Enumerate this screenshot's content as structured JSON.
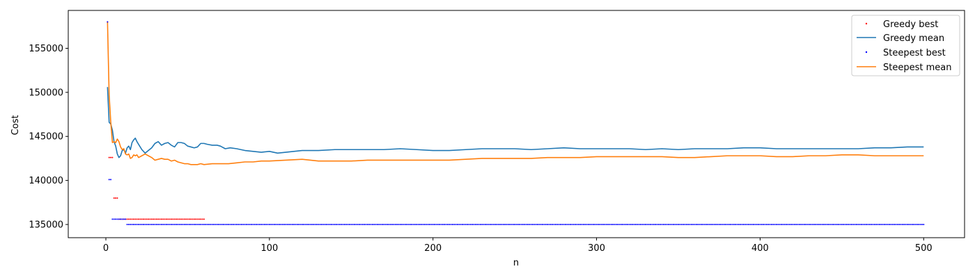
{
  "chart_data": {
    "type": "line",
    "title": "",
    "xlabel": "n",
    "ylabel": "Cost",
    "xlim": [
      -23,
      525
    ],
    "ylim": [
      133500,
      159300
    ],
    "x_ticks": [
      0,
      100,
      200,
      300,
      400,
      500
    ],
    "y_ticks": [
      135000,
      140000,
      145000,
      150000,
      155000
    ],
    "x_tick_labels": [
      "0",
      "100",
      "200",
      "300",
      "400",
      "500"
    ],
    "y_tick_labels": [
      "135000",
      "140000",
      "145000",
      "150000",
      "155000"
    ],
    "grid": false,
    "legend_position": "top-right",
    "series": [
      {
        "name": "Greedy best",
        "kind": "markers",
        "color": "#ff0000",
        "segments": [
          {
            "x_start": 1,
            "x_end": 1,
            "y": 158000
          },
          {
            "x_start": 2,
            "x_end": 4,
            "y": 142600
          },
          {
            "x_start": 5,
            "x_end": 7,
            "y": 138000
          },
          {
            "x_start": 8,
            "x_end": 60,
            "y": 135600
          }
        ]
      },
      {
        "name": "Greedy mean",
        "kind": "line",
        "color": "#1f77b4",
        "points": [
          [
            1,
            150600
          ],
          [
            2,
            146600
          ],
          [
            3,
            146400
          ],
          [
            4,
            145700
          ],
          [
            5,
            144400
          ],
          [
            6,
            143900
          ],
          [
            7,
            143000
          ],
          [
            8,
            142600
          ],
          [
            9,
            142800
          ],
          [
            10,
            143400
          ],
          [
            11,
            143500
          ],
          [
            12,
            143100
          ],
          [
            13,
            143700
          ],
          [
            14,
            143900
          ],
          [
            15,
            143500
          ],
          [
            16,
            144300
          ],
          [
            17,
            144600
          ],
          [
            18,
            144800
          ],
          [
            19,
            144400
          ],
          [
            20,
            144100
          ],
          [
            22,
            143500
          ],
          [
            24,
            143100
          ],
          [
            26,
            143400
          ],
          [
            28,
            143700
          ],
          [
            30,
            144200
          ],
          [
            32,
            144400
          ],
          [
            34,
            144000
          ],
          [
            36,
            144200
          ],
          [
            38,
            144300
          ],
          [
            40,
            144000
          ],
          [
            42,
            143800
          ],
          [
            44,
            144300
          ],
          [
            46,
            144300
          ],
          [
            48,
            144200
          ],
          [
            50,
            143900
          ],
          [
            52,
            143800
          ],
          [
            54,
            143700
          ],
          [
            56,
            143800
          ],
          [
            58,
            144200
          ],
          [
            60,
            144200
          ],
          [
            62,
            144100
          ],
          [
            65,
            144000
          ],
          [
            68,
            144000
          ],
          [
            70,
            143900
          ],
          [
            73,
            143600
          ],
          [
            76,
            143700
          ],
          [
            80,
            143600
          ],
          [
            85,
            143400
          ],
          [
            90,
            143300
          ],
          [
            95,
            143200
          ],
          [
            100,
            143300
          ],
          [
            105,
            143100
          ],
          [
            110,
            143200
          ],
          [
            115,
            143300
          ],
          [
            120,
            143400
          ],
          [
            130,
            143400
          ],
          [
            140,
            143500
          ],
          [
            150,
            143500
          ],
          [
            160,
            143500
          ],
          [
            170,
            143500
          ],
          [
            180,
            143600
          ],
          [
            190,
            143500
          ],
          [
            200,
            143400
          ],
          [
            210,
            143400
          ],
          [
            220,
            143500
          ],
          [
            230,
            143600
          ],
          [
            240,
            143600
          ],
          [
            250,
            143600
          ],
          [
            260,
            143500
          ],
          [
            270,
            143600
          ],
          [
            280,
            143700
          ],
          [
            290,
            143600
          ],
          [
            300,
            143600
          ],
          [
            310,
            143600
          ],
          [
            320,
            143600
          ],
          [
            330,
            143500
          ],
          [
            340,
            143600
          ],
          [
            350,
            143500
          ],
          [
            360,
            143600
          ],
          [
            370,
            143600
          ],
          [
            380,
            143600
          ],
          [
            390,
            143700
          ],
          [
            400,
            143700
          ],
          [
            410,
            143600
          ],
          [
            420,
            143600
          ],
          [
            430,
            143600
          ],
          [
            440,
            143600
          ],
          [
            450,
            143600
          ],
          [
            460,
            143600
          ],
          [
            470,
            143700
          ],
          [
            480,
            143700
          ],
          [
            490,
            143800
          ],
          [
            500,
            143800
          ]
        ]
      },
      {
        "name": "Steepest best",
        "kind": "markers",
        "color": "#0000ff",
        "segments": [
          {
            "x_start": 1,
            "x_end": 1,
            "y": 158000
          },
          {
            "x_start": 2,
            "x_end": 3,
            "y": 140100
          },
          {
            "x_start": 4,
            "x_end": 12,
            "y": 135600
          },
          {
            "x_start": 13,
            "x_end": 500,
            "y": 135000
          }
        ]
      },
      {
        "name": "Steepest mean",
        "kind": "line",
        "color": "#ff7f0e",
        "points": [
          [
            1,
            158000
          ],
          [
            2,
            149700
          ],
          [
            3,
            146600
          ],
          [
            4,
            144300
          ],
          [
            5,
            144400
          ],
          [
            6,
            144300
          ],
          [
            7,
            144700
          ],
          [
            8,
            144400
          ],
          [
            9,
            143800
          ],
          [
            10,
            143500
          ],
          [
            11,
            143600
          ],
          [
            12,
            143000
          ],
          [
            13,
            142900
          ],
          [
            14,
            143000
          ],
          [
            15,
            142500
          ],
          [
            16,
            142600
          ],
          [
            17,
            142900
          ],
          [
            18,
            142800
          ],
          [
            19,
            142900
          ],
          [
            20,
            142600
          ],
          [
            22,
            142800
          ],
          [
            24,
            143000
          ],
          [
            26,
            142800
          ],
          [
            28,
            142600
          ],
          [
            30,
            142300
          ],
          [
            32,
            142400
          ],
          [
            34,
            142500
          ],
          [
            36,
            142400
          ],
          [
            38,
            142400
          ],
          [
            40,
            142200
          ],
          [
            42,
            142300
          ],
          [
            44,
            142100
          ],
          [
            46,
            142000
          ],
          [
            48,
            141900
          ],
          [
            50,
            141900
          ],
          [
            52,
            141800
          ],
          [
            54,
            141800
          ],
          [
            56,
            141800
          ],
          [
            58,
            141900
          ],
          [
            60,
            141800
          ],
          [
            65,
            141900
          ],
          [
            70,
            141900
          ],
          [
            75,
            141900
          ],
          [
            80,
            142000
          ],
          [
            85,
            142100
          ],
          [
            90,
            142100
          ],
          [
            95,
            142200
          ],
          [
            100,
            142200
          ],
          [
            110,
            142300
          ],
          [
            120,
            142400
          ],
          [
            130,
            142200
          ],
          [
            140,
            142200
          ],
          [
            150,
            142200
          ],
          [
            160,
            142300
          ],
          [
            170,
            142300
          ],
          [
            180,
            142300
          ],
          [
            190,
            142300
          ],
          [
            200,
            142300
          ],
          [
            210,
            142300
          ],
          [
            220,
            142400
          ],
          [
            230,
            142500
          ],
          [
            240,
            142500
          ],
          [
            250,
            142500
          ],
          [
            260,
            142500
          ],
          [
            270,
            142600
          ],
          [
            280,
            142600
          ],
          [
            290,
            142600
          ],
          [
            300,
            142700
          ],
          [
            310,
            142700
          ],
          [
            320,
            142700
          ],
          [
            330,
            142700
          ],
          [
            340,
            142700
          ],
          [
            350,
            142600
          ],
          [
            360,
            142600
          ],
          [
            370,
            142700
          ],
          [
            380,
            142800
          ],
          [
            390,
            142800
          ],
          [
            400,
            142800
          ],
          [
            410,
            142700
          ],
          [
            420,
            142700
          ],
          [
            430,
            142800
          ],
          [
            440,
            142800
          ],
          [
            450,
            142900
          ],
          [
            460,
            142900
          ],
          [
            470,
            142800
          ],
          [
            480,
            142800
          ],
          [
            490,
            142800
          ],
          [
            500,
            142800
          ]
        ]
      }
    ]
  }
}
